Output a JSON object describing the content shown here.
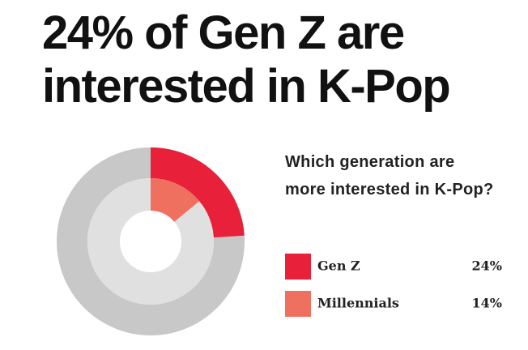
{
  "chart_data": {
    "type": "donut",
    "title": [
      "24% of Gen Z are",
      "interested in K-Pop"
    ],
    "legend_title": "Which generation are more interested in K-Pop?",
    "series": [
      {
        "name": "Gen Z",
        "color": "#e8203a",
        "values": [
          24
        ],
        "value_labels": [
          "24%"
        ]
      },
      {
        "name": "Millennials",
        "color": "#f07060",
        "values": [
          14
        ],
        "value_labels": [
          "14%"
        ]
      }
    ]
  }
}
